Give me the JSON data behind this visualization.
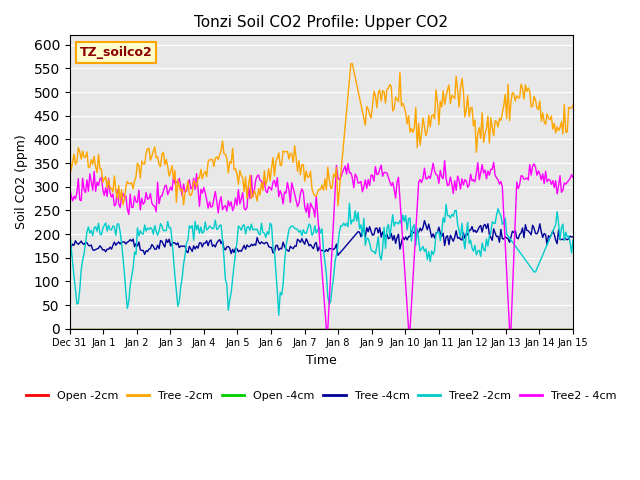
{
  "title": "Tonzi Soil CO2 Profile: Upper CO2",
  "ylabel": "Soil CO2 (ppm)",
  "xlabel": "Time",
  "annotation_text": "TZ_soilco2",
  "ylim": [
    0,
    620
  ],
  "yticks": [
    0,
    50,
    100,
    150,
    200,
    250,
    300,
    350,
    400,
    450,
    500,
    550,
    600
  ],
  "bg_color": "#e8e8e8",
  "colors": {
    "open_2cm": "#ff0000",
    "tree_2cm": "#ffa500",
    "open_4cm": "#00cc00",
    "tree_4cm": "#000099",
    "tree2_2cm": "#00cccc",
    "tree2_4cm": "#ff00ff"
  },
  "legend": [
    {
      "label": "Open -2cm",
      "color": "#ff0000"
    },
    {
      "label": "Tree -2cm",
      "color": "#ffa500"
    },
    {
      "label": "Open -4cm",
      "color": "#00cc00"
    },
    {
      "label": "Tree -4cm",
      "color": "#000099"
    },
    {
      "label": "Tree2 -2cm",
      "color": "#00cccc"
    },
    {
      "label": "Tree2 - 4cm",
      "color": "#ff00ff"
    }
  ],
  "n_points": 350
}
